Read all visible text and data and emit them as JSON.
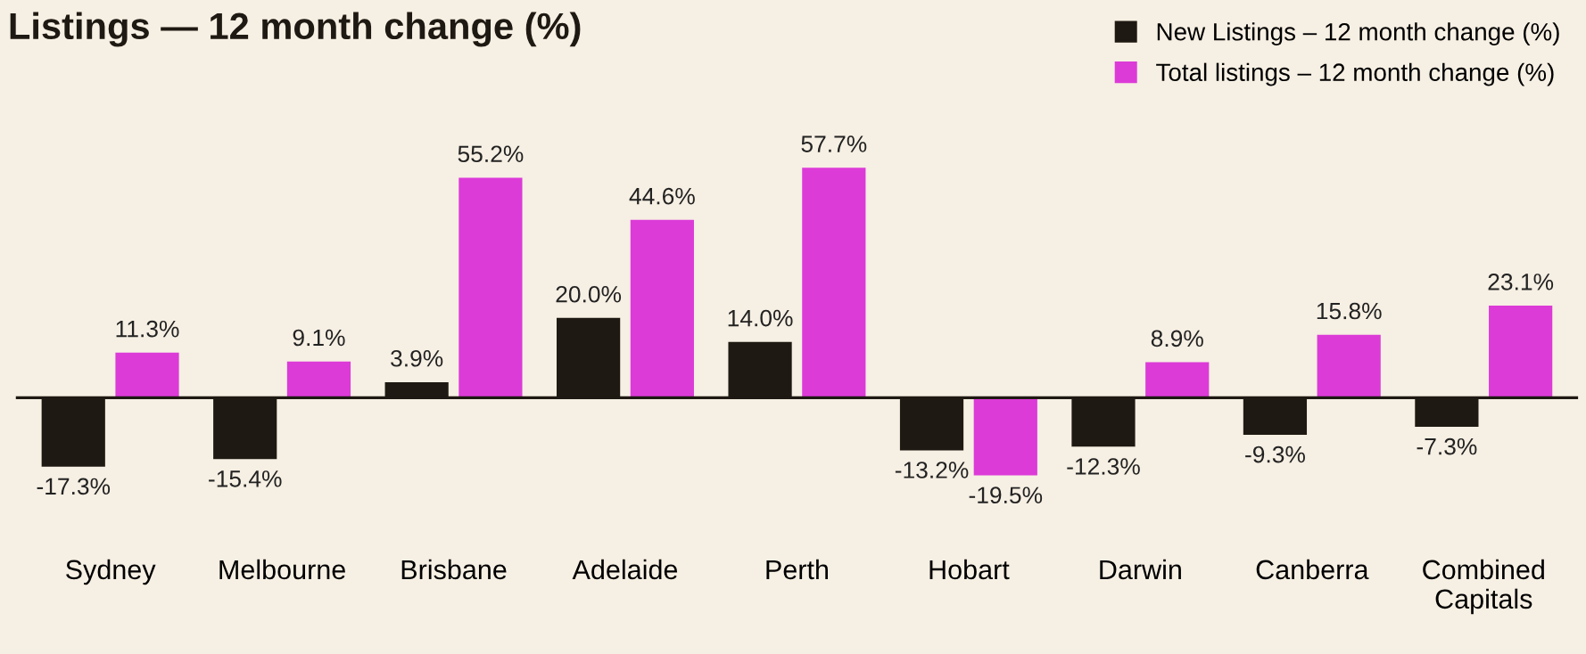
{
  "chart_data": {
    "type": "bar",
    "title": "Listings — 12 month change (%)",
    "categories": [
      "Sydney",
      "Melbourne",
      "Brisbane",
      "Adelaide",
      "Perth",
      "Hobart",
      "Darwin",
      "Canberra",
      "Combined\nCapitals"
    ],
    "series": [
      {
        "name": "New Listings – 12 month change (%)",
        "color": "#1e1912",
        "values": [
          -17.3,
          -15.4,
          3.9,
          20.0,
          14.0,
          -13.2,
          -12.3,
          -9.3,
          -7.3
        ],
        "value_labels": [
          "-17.3%",
          "-15.4%",
          "3.9%",
          "20.0%",
          "14.0%",
          "-13.2%",
          "-12.3%",
          "-9.3%",
          "-7.3%"
        ]
      },
      {
        "name": "Total listings – 12 month change (%)",
        "color": "#dc3bd8",
        "values": [
          11.3,
          9.1,
          55.2,
          44.6,
          57.7,
          -19.5,
          8.9,
          15.8,
          23.1
        ],
        "value_labels": [
          "11.3%",
          "9.1%",
          "55.2%",
          "44.6%",
          "57.7%",
          "-19.5%",
          "8.9%",
          "15.8%",
          "23.1%"
        ]
      }
    ],
    "legend": "top right",
    "grid": false
  }
}
